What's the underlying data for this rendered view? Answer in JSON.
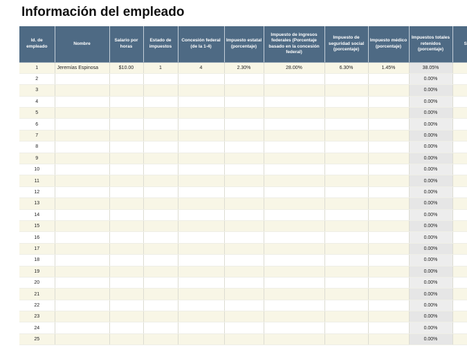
{
  "title": "Información del empleado",
  "columns": [
    "Id. de empleado",
    "Nombre",
    "Salario por horas",
    "Estado de impuestos",
    "Concesión federal (de la 1-4)",
    "Impuesto estatal (porcentaje)",
    "Impuesto de ingresos federales (Porcentaje basado en la concesión federal)",
    "Impuesto de seguridad social (porcentaje)",
    "Impuesto médico (porcentaje)",
    "Impuestos totales retenidos (porcentaje)",
    "S Dedu (S"
  ],
  "rows": [
    [
      "1",
      "Jeremías Espinosa",
      "$10.00",
      "1",
      "4",
      "2.30%",
      "28.00%",
      "6.30%",
      "1.45%",
      "38.05%",
      "$"
    ],
    [
      "2",
      "",
      "",
      "",
      "",
      "",
      "",
      "",
      "",
      "0.00%",
      "$"
    ],
    [
      "3",
      "",
      "",
      "",
      "",
      "",
      "",
      "",
      "",
      "0.00%",
      ""
    ],
    [
      "4",
      "",
      "",
      "",
      "",
      "",
      "",
      "",
      "",
      "0.00%",
      ""
    ],
    [
      "5",
      "",
      "",
      "",
      "",
      "",
      "",
      "",
      "",
      "0.00%",
      ""
    ],
    [
      "6",
      "",
      "",
      "",
      "",
      "",
      "",
      "",
      "",
      "0.00%",
      ""
    ],
    [
      "7",
      "",
      "",
      "",
      "",
      "",
      "",
      "",
      "",
      "0.00%",
      ""
    ],
    [
      "8",
      "",
      "",
      "",
      "",
      "",
      "",
      "",
      "",
      "0.00%",
      ""
    ],
    [
      "9",
      "",
      "",
      "",
      "",
      "",
      "",
      "",
      "",
      "0.00%",
      ""
    ],
    [
      "10",
      "",
      "",
      "",
      "",
      "",
      "",
      "",
      "",
      "0.00%",
      ""
    ],
    [
      "11",
      "",
      "",
      "",
      "",
      "",
      "",
      "",
      "",
      "0.00%",
      ""
    ],
    [
      "12",
      "",
      "",
      "",
      "",
      "",
      "",
      "",
      "",
      "0.00%",
      ""
    ],
    [
      "13",
      "",
      "",
      "",
      "",
      "",
      "",
      "",
      "",
      "0.00%",
      ""
    ],
    [
      "14",
      "",
      "",
      "",
      "",
      "",
      "",
      "",
      "",
      "0.00%",
      ""
    ],
    [
      "15",
      "",
      "",
      "",
      "",
      "",
      "",
      "",
      "",
      "0.00%",
      ""
    ],
    [
      "16",
      "",
      "",
      "",
      "",
      "",
      "",
      "",
      "",
      "0.00%",
      ""
    ],
    [
      "17",
      "",
      "",
      "",
      "",
      "",
      "",
      "",
      "",
      "0.00%",
      ""
    ],
    [
      "18",
      "",
      "",
      "",
      "",
      "",
      "",
      "",
      "",
      "0.00%",
      ""
    ],
    [
      "19",
      "",
      "",
      "",
      "",
      "",
      "",
      "",
      "",
      "0.00%",
      ""
    ],
    [
      "20",
      "",
      "",
      "",
      "",
      "",
      "",
      "",
      "",
      "0.00%",
      ""
    ],
    [
      "21",
      "",
      "",
      "",
      "",
      "",
      "",
      "",
      "",
      "0.00%",
      ""
    ],
    [
      "22",
      "",
      "",
      "",
      "",
      "",
      "",
      "",
      "",
      "0.00%",
      ""
    ],
    [
      "23",
      "",
      "",
      "",
      "",
      "",
      "",
      "",
      "",
      "0.00%",
      ""
    ],
    [
      "24",
      "",
      "",
      "",
      "",
      "",
      "",
      "",
      "",
      "0.00%",
      ""
    ],
    [
      "25",
      "",
      "",
      "",
      "",
      "",
      "",
      "",
      "",
      "0.00%",
      ""
    ]
  ],
  "colors": {
    "header_bg": "#4e6a84",
    "header_text": "#ffffff",
    "band_row": "#f8f6e6",
    "total_column": "#e6e6e6"
  }
}
